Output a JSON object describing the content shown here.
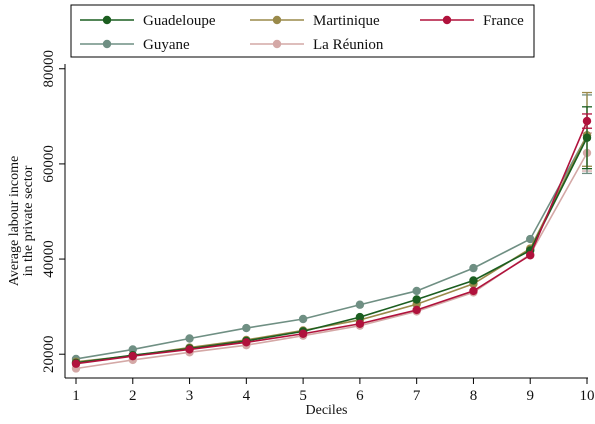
{
  "chart_data": {
    "type": "line",
    "xlabel": "Deciles",
    "ylabel_lines": [
      "Average labour income",
      "in the private sector"
    ],
    "x": [
      1,
      2,
      3,
      4,
      5,
      6,
      7,
      8,
      9,
      10
    ],
    "xlim": [
      1,
      10
    ],
    "ylim": [
      15000,
      81000
    ],
    "yticks": [
      20000,
      40000,
      60000,
      80000
    ],
    "grid": false,
    "legend_position": "top",
    "series": [
      {
        "name": "Guadeloupe",
        "color": "#1b5e20",
        "values": [
          18200,
          19800,
          21200,
          22800,
          24800,
          27800,
          31500,
          35500,
          41800,
          65500
        ],
        "error_last": [
          59000,
          72000
        ]
      },
      {
        "name": "Martinique",
        "color": "#9a8a4a",
        "values": [
          18400,
          19700,
          21400,
          23000,
          25000,
          27200,
          30500,
          34800,
          42200,
          66000
        ],
        "error_last": [
          59500,
          75000
        ]
      },
      {
        "name": "France",
        "color": "#b0123c",
        "values": [
          18000,
          19600,
          21000,
          22500,
          24300,
          26400,
          29300,
          33300,
          40800,
          69000
        ],
        "error_last": [
          67500,
          70500
        ]
      },
      {
        "name": "Guyane",
        "color": "#6f8f83",
        "values": [
          19000,
          21000,
          23300,
          25500,
          27400,
          30400,
          33300,
          38100,
          44200,
          66000
        ],
        "error_last": [
          58000,
          74500
        ]
      },
      {
        "name": "La Réunion",
        "color": "#d4a8a6",
        "values": [
          17000,
          18800,
          20400,
          21900,
          23900,
          26000,
          29000,
          33000,
          41000,
          62300
        ],
        "error_last": [
          58500,
          66500
        ]
      }
    ]
  }
}
